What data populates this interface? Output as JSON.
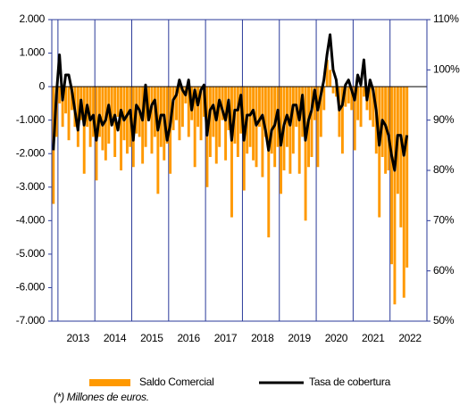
{
  "chart_data": {
    "type": "bar_line",
    "categories": [
      null,
      null,
      null,
      null,
      null,
      null,
      null,
      null,
      "2013",
      null,
      null,
      null,
      null,
      null,
      null,
      null,
      null,
      null,
      null,
      null,
      "2014",
      null,
      null,
      null,
      null,
      null,
      null,
      null,
      null,
      null,
      null,
      null,
      "2015",
      null,
      null,
      null,
      null,
      null,
      null,
      null,
      null,
      null,
      null,
      null,
      "2016",
      null,
      null,
      null,
      null,
      null,
      null,
      null,
      null,
      null,
      null,
      null,
      "2017",
      null,
      null,
      null,
      null,
      null,
      null,
      null,
      null,
      null,
      null,
      null,
      "2018",
      null,
      null,
      null,
      null,
      null,
      null,
      null,
      null,
      null,
      null,
      null,
      "2019",
      null,
      null,
      null,
      null,
      null,
      null,
      null,
      null,
      null,
      null,
      null,
      "2020",
      null,
      null,
      null,
      null,
      null,
      null,
      null,
      null,
      null,
      null,
      null,
      "2021",
      null,
      null,
      null,
      null,
      null,
      null,
      null,
      null,
      null,
      null,
      null,
      "2022",
      null,
      null,
      null,
      null,
      null
    ],
    "series": [
      {
        "name": "Saldo Comercial",
        "color": "#ff9900",
        "kind": "bar",
        "axis": "y",
        "values": [
          -3500,
          -1500,
          -500,
          -1200,
          -800,
          -1600,
          -700,
          -1200,
          -1800,
          -1000,
          -2600,
          -1200,
          -1800,
          -1500,
          -2800,
          -1500,
          -1900,
          -2200,
          -1700,
          -1100,
          -2100,
          -900,
          -2500,
          -1600,
          -2000,
          -1800,
          -2400,
          -1400,
          -1500,
          -2300,
          -1800,
          -1000,
          -2000,
          -1500,
          -3200,
          -1800,
          -2200,
          -1700,
          -2600,
          -1300,
          -1000,
          -1600,
          -1200,
          -500,
          -1500,
          -1000,
          -2400,
          -1200,
          -1600,
          -900,
          -3000,
          -2100,
          -1500,
          -2300,
          -1800,
          -1000,
          -2200,
          -1300,
          -3900,
          -1700,
          -2100,
          -1400,
          -3100,
          -2000,
          -1800,
          -2200,
          -2400,
          -1200,
          -2700,
          -1500,
          -4500,
          -2000,
          -2400,
          -1800,
          -3200,
          -2500,
          -1800,
          -2600,
          -2000,
          -1200,
          -2600,
          -1500,
          -4000,
          -2400,
          -2100,
          -1000,
          -2400,
          -1500,
          -700,
          800,
          500,
          -200,
          -300,
          -1500,
          -2000,
          -600,
          -500,
          -700,
          -1900,
          -1000,
          -1200,
          -300,
          -700,
          -1000,
          -1200,
          -2000,
          -3900,
          -2100,
          -2600,
          -2500,
          -5300,
          -6500,
          -3200,
          -4200,
          -6300,
          -5400,
          null,
          null,
          null,
          null,
          null,
          null
        ]
      },
      {
        "name": "Tasa de cobertura",
        "color": "#000000",
        "kind": "line",
        "axis": "y2",
        "values": [
          84,
          95,
          103,
          94,
          99,
          99,
          96,
          92,
          88,
          94,
          89,
          93,
          90,
          91,
          86,
          91,
          89,
          90,
          93,
          89,
          91,
          88,
          92,
          90,
          91,
          92,
          86,
          93,
          92,
          90,
          97,
          90,
          93,
          94,
          88,
          91,
          91,
          86,
          89,
          94,
          95,
          98,
          96,
          95,
          98,
          92,
          96,
          93,
          96,
          97,
          87,
          92,
          93,
          90,
          94,
          92,
          90,
          94,
          86,
          92,
          92,
          95,
          86,
          91,
          91,
          92,
          89,
          90,
          91,
          88,
          84,
          88,
          89,
          92,
          85,
          89,
          91,
          89,
          93,
          93,
          90,
          95,
          86,
          90,
          92,
          96,
          92,
          95,
          98,
          103,
          107,
          100,
          98,
          92,
          93,
          97,
          98,
          96,
          94,
          99,
          97,
          102,
          94,
          98,
          96,
          92,
          85,
          90,
          89,
          87,
          83,
          80,
          87,
          87,
          83,
          87,
          null,
          null,
          null,
          null,
          null,
          null
        ]
      }
    ],
    "ylim": [
      -7000,
      2000
    ],
    "yticks": [
      {
        "value": -7000,
        "label": "-7.000"
      },
      {
        "value": -6000,
        "label": "-6.000"
      },
      {
        "value": -5000,
        "label": "-5.000"
      },
      {
        "value": -4000,
        "label": "-4.000"
      },
      {
        "value": -3000,
        "label": "-3.000"
      },
      {
        "value": -2000,
        "label": "-2.000"
      },
      {
        "value": -1000,
        "label": "-1.000"
      },
      0,
      {
        "value": 1000,
        "label": "1.000"
      },
      {
        "value": 2000,
        "label": "2.000"
      }
    ],
    "y2lim": [
      50,
      110
    ],
    "y2ticks": [
      {
        "value": 50,
        "label": "50%"
      },
      {
        "value": 60,
        "label": "60%"
      },
      {
        "value": 70,
        "label": "70%"
      },
      {
        "value": 80,
        "label": "80%"
      },
      {
        "value": 90,
        "label": "90%"
      },
      {
        "value": 100,
        "label": "100%"
      },
      {
        "value": 110,
        "label": "110%"
      }
    ],
    "footnote": "(*) Millones de euros."
  }
}
